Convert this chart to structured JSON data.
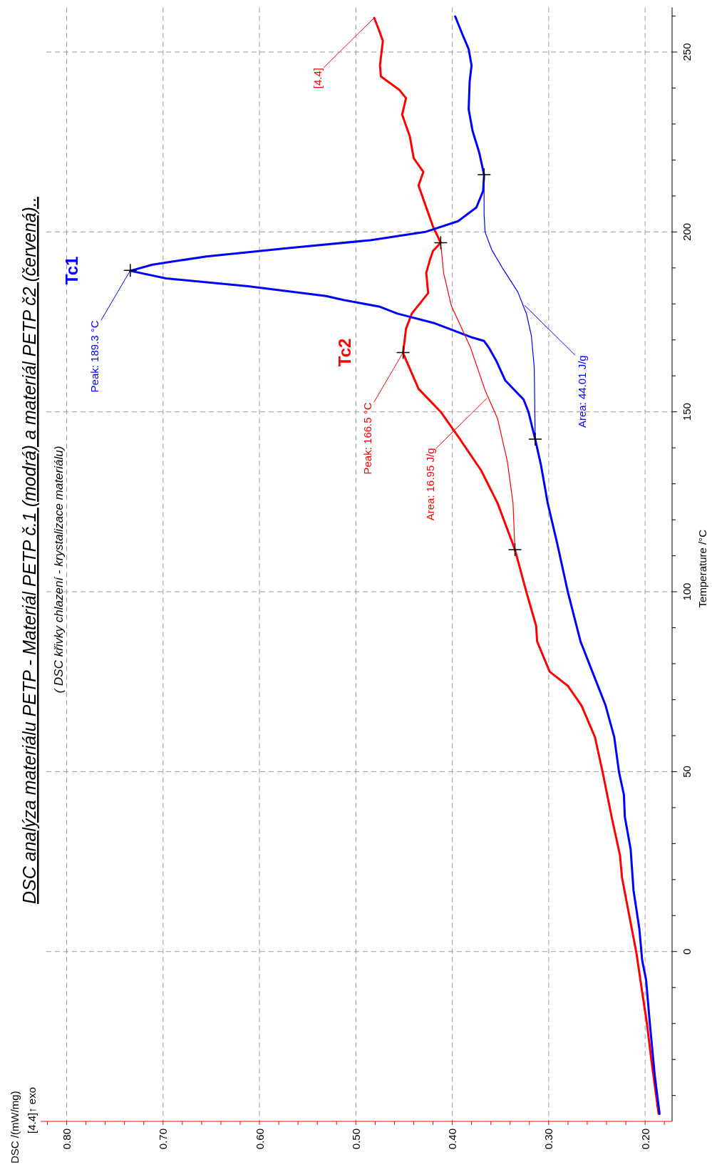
{
  "chart_data": {
    "type": "line",
    "title": "DSC analýza materiálu PETP - Materiál PETP č.1 (modrá) a materiál PETP č2 (červená)..",
    "subtitle": "( DSC křivky chlazení - krystalizace materiálu)",
    "ylabel": "Temperature /°C",
    "xlim": [
      0.827,
      0.172
    ],
    "ylim": [
      -47.2,
      262.4
    ],
    "xticks": [
      {
        "value": 0.82,
        "label": null
      },
      {
        "value": 0.8,
        "label": "0.80"
      },
      {
        "value": 0.78,
        "label": null
      },
      {
        "value": 0.76,
        "label": null
      },
      {
        "value": 0.74,
        "label": null
      },
      {
        "value": 0.72,
        "label": null
      },
      {
        "value": 0.7,
        "label": "0.70"
      },
      {
        "value": 0.68,
        "label": null
      },
      {
        "value": 0.66,
        "label": null
      },
      {
        "value": 0.64,
        "label": null
      },
      {
        "value": 0.62,
        "label": null
      },
      {
        "value": 0.6,
        "label": "0.60"
      },
      {
        "value": 0.58,
        "label": null
      },
      {
        "value": 0.56,
        "label": null
      },
      {
        "value": 0.54,
        "label": null
      },
      {
        "value": 0.52,
        "label": null
      },
      {
        "value": 0.5,
        "label": "0.50"
      },
      {
        "value": 0.48,
        "label": null
      },
      {
        "value": 0.46,
        "label": null
      },
      {
        "value": 0.44,
        "label": null
      },
      {
        "value": 0.42,
        "label": null
      },
      {
        "value": 0.4,
        "label": "0.40"
      },
      {
        "value": 0.38,
        "label": null
      },
      {
        "value": 0.36,
        "label": null
      },
      {
        "value": 0.34,
        "label": null
      },
      {
        "value": 0.32,
        "label": null
      },
      {
        "value": 0.3,
        "label": "0.30"
      },
      {
        "value": 0.28,
        "label": null
      },
      {
        "value": 0.26,
        "label": null
      },
      {
        "value": 0.24,
        "label": null
      },
      {
        "value": 0.22,
        "label": null
      },
      {
        "value": 0.2,
        "label": "0.20"
      },
      {
        "value": 0.18,
        "label": null
      }
    ],
    "yticks": [
      {
        "value": -40,
        "label": null
      },
      {
        "value": -30,
        "label": null
      },
      {
        "value": -20,
        "label": null
      },
      {
        "value": -10,
        "label": null
      },
      0,
      {
        "value": 10,
        "label": null
      },
      {
        "value": 20,
        "label": null
      },
      {
        "value": 30,
        "label": null
      },
      {
        "value": 40,
        "label": null
      },
      50,
      {
        "value": 60,
        "label": null
      },
      {
        "value": 70,
        "label": null
      },
      {
        "value": 80,
        "label": null
      },
      {
        "value": 90,
        "label": null
      },
      100,
      {
        "value": 110,
        "label": null
      },
      {
        "value": 120,
        "label": null
      },
      {
        "value": 130,
        "label": null
      },
      {
        "value": 140,
        "label": null
      },
      150,
      {
        "value": 160,
        "label": null
      },
      {
        "value": 170,
        "label": null
      },
      {
        "value": 180,
        "label": null
      },
      {
        "value": 190,
        "label": null
      },
      200,
      {
        "value": 210,
        "label": null
      },
      {
        "value": 220,
        "label": null
      },
      {
        "value": 230,
        "label": null
      },
      {
        "value": 240,
        "label": null
      },
      250,
      {
        "value": 260,
        "label": null
      }
    ],
    "grid": true,
    "series": [
      {
        "color": "#ff0000",
        "values": [
          -45.1,
          -29.1,
          -20.2,
          -11.3,
          -0.4,
          10.8,
          20.6,
          26.7,
          36.5,
          49.8,
          59.6,
          68.4,
          73.8,
          77.8,
          86.2,
          90.5,
          99.8,
          111.7,
          124.6,
          133.7,
          142.8,
          150,
          156.4,
          166.3,
          173.1,
          177.3,
          183,
          188.6,
          192.4,
          194.7,
          197,
          201.5,
          206.8,
          212.9,
          216.7,
          220.5,
          226.5,
          232.6,
          237.2,
          239.5,
          243.2,
          246.3,
          253.1,
          256.1,
          259.5
        ],
        "x": [
          0.186,
          0.194,
          0.198,
          0.203,
          0.209,
          0.217,
          0.224,
          0.226,
          0.234,
          0.244,
          0.252,
          0.266,
          0.28,
          0.299,
          0.312,
          0.313,
          0.323,
          0.335,
          0.353,
          0.37,
          0.393,
          0.412,
          0.435,
          0.451,
          0.448,
          0.442,
          0.425,
          0.427,
          0.423,
          0.42,
          0.412,
          0.42,
          0.427,
          0.435,
          0.43,
          0.44,
          0.444,
          0.452,
          0.448,
          0.455,
          0.474,
          0.475,
          0.472,
          0.476,
          0.481
        ]
      },
      {
        "color": "#0000ff",
        "values": [
          -45.1,
          -34.4,
          -20.2,
          -7.8,
          -2.5,
          6.4,
          17,
          28.5,
          37.4,
          43.6,
          49.8,
          59.6,
          68.4,
          77.3,
          86.2,
          99.8,
          113.2,
          124.6,
          135.2,
          142.4,
          150,
          153.4,
          158.7,
          164,
          167.8,
          169.7,
          170.8,
          174.6,
          177.3,
          179.2,
          181.1,
          182.2,
          184.9,
          187.1,
          189.2,
          190.9,
          193.2,
          195.5,
          197.7,
          200,
          203,
          206.8,
          211.4,
          215.9,
          222,
          228.1,
          234.1,
          241.7,
          246.3,
          250.8,
          254.6,
          259.9
        ],
        "x": [
          0.185,
          0.19,
          0.195,
          0.199,
          0.203,
          0.206,
          0.212,
          0.215,
          0.221,
          0.222,
          0.227,
          0.232,
          0.241,
          0.254,
          0.267,
          0.28,
          0.291,
          0.301,
          0.308,
          0.314,
          0.321,
          0.326,
          0.345,
          0.354,
          0.362,
          0.367,
          0.381,
          0.418,
          0.457,
          0.475,
          0.513,
          0.531,
          0.612,
          0.697,
          0.734,
          0.711,
          0.655,
          0.57,
          0.485,
          0.428,
          0.394,
          0.375,
          0.368,
          0.367,
          0.372,
          0.379,
          0.383,
          0.382,
          0.38,
          0.383,
          0.389,
          0.397
        ]
      },
      {
        "color": "#ff0000",
        "values": [
          111.7,
          124.6,
          136.4,
          148.1,
          156,
          167.8,
          179.5,
          188.6,
          197
        ],
        "x": [
          0.335,
          0.337,
          0.343,
          0.353,
          0.366,
          0.381,
          0.401,
          0.409,
          0.412
        ]
      },
      {
        "color": "#0000ff",
        "values": [
          142.4,
          162.5,
          171.2,
          177.2,
          183.3,
          190,
          195,
          200,
          205,
          215.9
        ],
        "x": [
          0.314,
          0.315,
          0.318,
          0.323,
          0.332,
          0.348,
          0.359,
          0.366,
          0.367,
          0.367
        ]
      },
      {
        "type": "scatter",
        "color": "#000000",
        "marker": "cross",
        "values": [
          189.3,
          166.5,
          111.7,
          197,
          142.4,
          215.9
        ],
        "x": [
          0.734,
          0.451,
          0.335,
          0.412,
          0.314,
          0.367
        ]
      }
    ],
    "annotations": [
      {
        "text": "Tc1",
        "x": 0.734,
        "y": 189.3
      },
      {
        "text": "Peak: 189.3 °C",
        "x": 0.734,
        "y": 189.3
      },
      {
        "text": "Tc2",
        "x": 0.451,
        "y": 166.5
      },
      {
        "text": "Peak: 166.5 °C",
        "x": 0.451,
        "y": 166.5
      },
      {
        "text": "Area: 16.95 J/g",
        "x": 0.364,
        "y": 153.8
      },
      {
        "text": "Area: 44.01 J/g",
        "x": 0.325,
        "y": 179.6
      },
      {
        "text": "[4.4]",
        "x": 0.481,
        "y": 259.5
      },
      "DSC /(mW/mg)",
      "[4.4]↑ exo"
    ]
  }
}
